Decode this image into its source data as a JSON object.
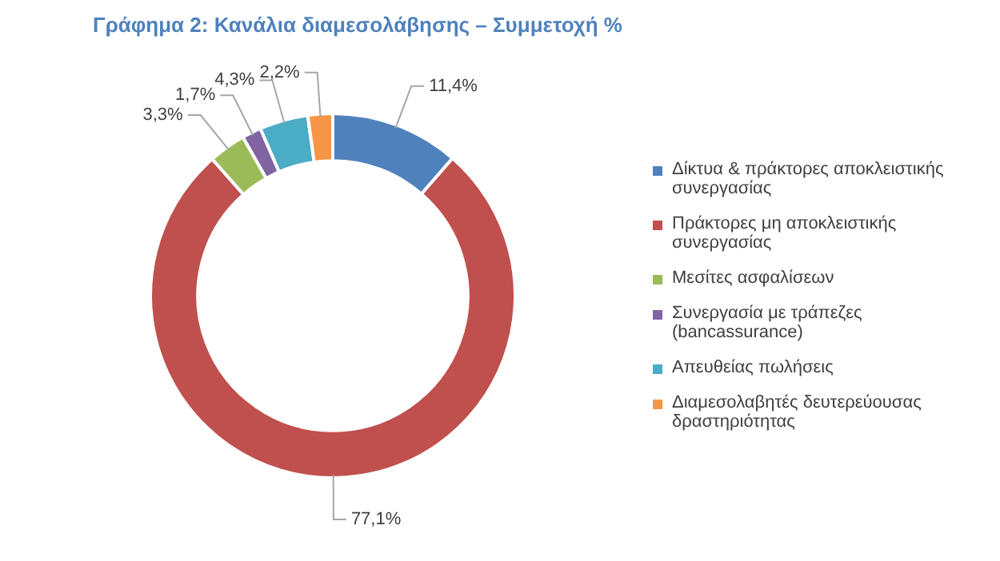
{
  "chart_data": {
    "type": "donut",
    "title": "Γράφημα 2:  Κανάλια διαμεσολάβησης – Συμμετοχή %",
    "categories": [
      "Δίκτυα & πράκτορες αποκλειστικής συνεργασίας",
      "Πράκτορες μη αποκλειστικής συνεργασίας",
      "Μεσίτες ασφαλίσεων",
      "Συνεργασία με τράπεζες (bancassurance)",
      "Απευθείας πωλήσεις",
      "Διαμεσολαβητές δευτερεύουσας δραστηριότητας"
    ],
    "values": [
      11.4,
      77.1,
      3.3,
      1.7,
      4.3,
      2.2
    ],
    "value_labels": [
      "11,4%",
      "77,1%",
      "3,3%",
      "1,7%",
      "4,3%",
      "2,2%"
    ],
    "colors": [
      "#4f81bd",
      "#c0504d",
      "#9bbb59",
      "#8064a2",
      "#4bacc6",
      "#f79646"
    ],
    "legend": "right"
  }
}
